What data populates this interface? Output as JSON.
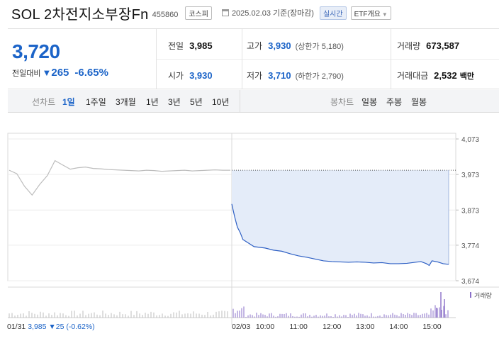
{
  "header": {
    "name": "SOL 2차전지소부장Fn",
    "code": "455860",
    "market_badge": "코스피",
    "date": "2025.02.03 기준(장마감)",
    "realtime_badge": "실시간",
    "etf_button": "ETF개요"
  },
  "summary": {
    "price": "3,720",
    "change_label": "전일대비",
    "change_arrow": "▼",
    "change_value": "265",
    "change_pct": "-6.65%",
    "prev_close_label": "전일",
    "prev_close": "3,985",
    "high_label": "고가",
    "high": "3,930",
    "upper_limit": "(상한가 5,180)",
    "volume_label": "거래량",
    "volume": "673,587",
    "open_label": "시가",
    "open": "3,930",
    "low_label": "저가",
    "low": "3,710",
    "lower_limit": "(하한가 2,790)",
    "amount_label": "거래대금",
    "amount": "2,532",
    "amount_unit": "백만"
  },
  "tabs": {
    "line_label": "선차트",
    "periods": [
      "1일",
      "1주일",
      "3개월",
      "1년",
      "3년",
      "5년",
      "10년"
    ],
    "active_period": "1일",
    "candle_label": "봉차트",
    "candles": [
      "일봉",
      "주봉",
      "월봉"
    ]
  },
  "chart_data": {
    "type": "line",
    "ylim": [
      3674,
      4073
    ],
    "y_ticks": [
      "4,073",
      "3,973",
      "3,873",
      "3,774",
      "3,674"
    ],
    "x_ticks": [
      "02/03",
      "10:00",
      "11:00",
      "12:00",
      "13:00",
      "14:00",
      "15:00"
    ],
    "prev_close_line": 3985,
    "prev_day": {
      "label": "01/31",
      "close": "3,985",
      "change": "▼25",
      "change_pct": "(-0.62%)",
      "values": [
        3985,
        3975,
        3940,
        3915,
        3945,
        3970,
        4012,
        4000,
        3988,
        3992,
        3994,
        3990,
        3989,
        3987,
        3986,
        3985,
        3984,
        3983,
        3985,
        3984,
        3982,
        3983,
        3984,
        3985,
        3983,
        3984,
        3985,
        3986,
        3985,
        3985
      ]
    },
    "today": {
      "times": [
        "09:00",
        "09:05",
        "09:10",
        "09:15",
        "09:20",
        "09:30",
        "09:40",
        "09:50",
        "10:00",
        "10:15",
        "10:30",
        "10:45",
        "11:00",
        "11:15",
        "11:30",
        "11:45",
        "12:00",
        "12:15",
        "12:30",
        "12:45",
        "13:00",
        "13:15",
        "13:30",
        "13:45",
        "14:00",
        "14:15",
        "14:30",
        "14:40",
        "14:50",
        "14:55",
        "15:00",
        "15:10",
        "15:20",
        "15:30"
      ],
      "values": [
        3890,
        3855,
        3825,
        3810,
        3790,
        3780,
        3770,
        3768,
        3766,
        3760,
        3757,
        3750,
        3744,
        3740,
        3735,
        3730,
        3728,
        3727,
        3726,
        3727,
        3726,
        3724,
        3725,
        3722,
        3722,
        3723,
        3726,
        3728,
        3722,
        3717,
        3730,
        3727,
        3722,
        3720
      ]
    },
    "volume_label": "거래량"
  }
}
